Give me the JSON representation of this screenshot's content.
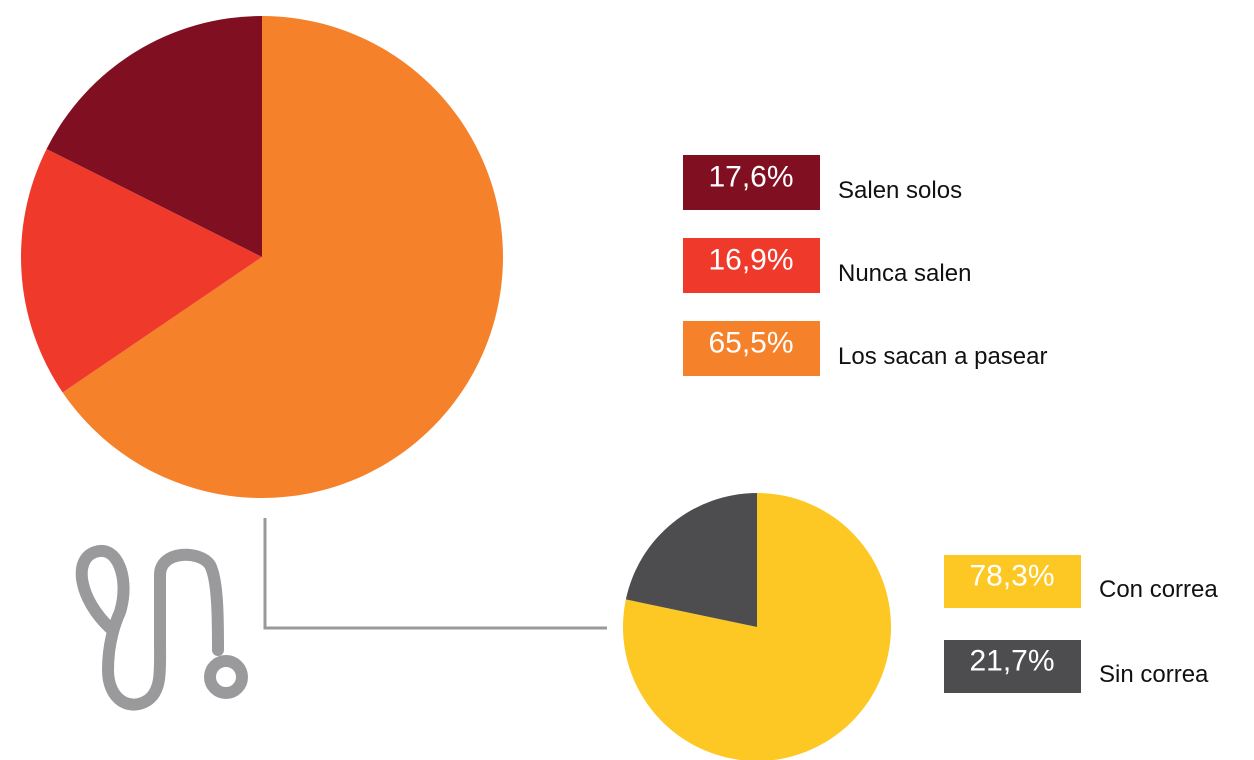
{
  "chart_data": [
    {
      "type": "pie",
      "categories": [
        "Salen solos",
        "Nunca salen",
        "Los sacan a pasear"
      ],
      "values": [
        17.6,
        16.9,
        65.5
      ],
      "value_labels": [
        "17,6%",
        "16,9%",
        "65,5%"
      ],
      "colors": [
        "#800f22",
        "#ef3a2b",
        "#f5822a"
      ]
    },
    {
      "type": "pie",
      "categories": [
        "Con correa",
        "Sin correa"
      ],
      "values": [
        78.3,
        21.7
      ],
      "value_labels": [
        "78,3%",
        "21,7%"
      ],
      "colors": [
        "#fdc823",
        "#4d4d4f"
      ]
    }
  ]
}
